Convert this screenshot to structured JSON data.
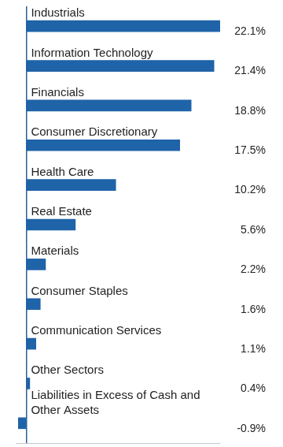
{
  "chart_data": {
    "type": "bar",
    "orientation": "horizontal",
    "categories": [
      "Industrials",
      "Information Technology",
      "Financials",
      "Consumer Discretionary",
      "Health Care",
      "Real Estate",
      "Materials",
      "Consumer Staples",
      "Communication Services",
      "Other Sectors",
      "Liabilities in Excess of Cash and Other Assets"
    ],
    "values": [
      22.1,
      21.4,
      18.8,
      17.5,
      10.2,
      5.6,
      2.2,
      1.6,
      1.1,
      0.4,
      -0.9
    ],
    "value_labels": [
      "22.1%",
      "21.4%",
      "18.8%",
      "17.5%",
      "10.2%",
      "5.6%",
      "2.2%",
      "1.6%",
      "1.1%",
      "0.4%",
      "-0.9%"
    ],
    "color": "#1f63a8",
    "xlim": [
      -1.2,
      22.1
    ],
    "xticks": [
      0
    ],
    "grid": true,
    "data_labels": true,
    "tick_labels": false
  }
}
